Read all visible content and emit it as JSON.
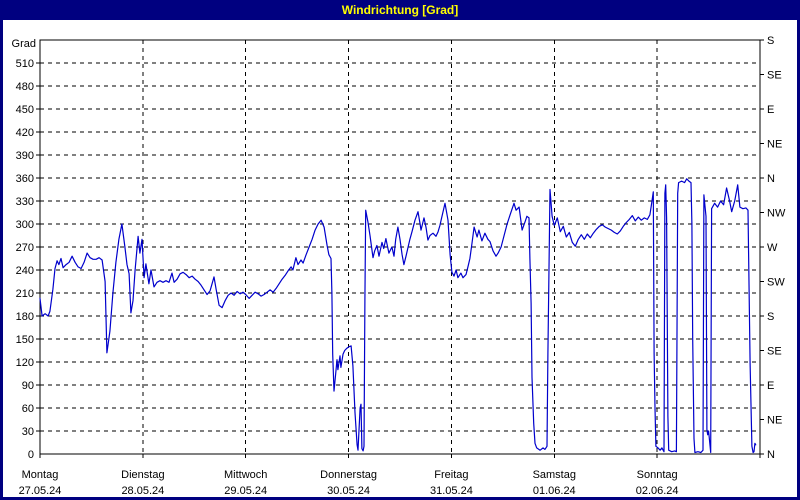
{
  "window": {
    "title": "Windrichtung [Grad]"
  },
  "colors": {
    "titlebar": "#000080",
    "title_text": "#FFFF00",
    "panel_bg": "#FFFFFF",
    "grid": "#000000",
    "axis": "#000000",
    "label_text": "#000000",
    "line": "#0000CC"
  },
  "chart_data": {
    "type": "line",
    "title": "Windrichtung [Grad]",
    "y_axis": {
      "unit_label": "Grad",
      "min": 0,
      "max": 540,
      "tick_step": 30,
      "tick_labels": [
        "0",
        "30",
        "60",
        "90",
        "120",
        "150",
        "180",
        "210",
        "240",
        "270",
        "300",
        "330",
        "360",
        "390",
        "420",
        "450",
        "480",
        "510"
      ]
    },
    "right_axis": {
      "tick_step_deg": 45,
      "labels_bottom_to_top": [
        "N",
        "NE",
        "E",
        "SE",
        "S",
        "SW",
        "W",
        "NW",
        "N",
        "NE",
        "E",
        "SE",
        "S"
      ]
    },
    "x_axis": {
      "range_hours": [
        0,
        168
      ],
      "day_tick_step_hours": 24,
      "categories": [
        {
          "day": "Montag",
          "date": "27.05.24"
        },
        {
          "day": "Dienstag",
          "date": "28.05.24"
        },
        {
          "day": "Mittwoch",
          "date": "29.05.24"
        },
        {
          "day": "Donnerstag",
          "date": "30.05.24"
        },
        {
          "day": "Freitag",
          "date": "31.05.24"
        },
        {
          "day": "Samstag",
          "date": "01.06.24"
        },
        {
          "day": "Sonntag",
          "date": "02.06.24"
        }
      ]
    },
    "grid": {
      "horizontal": "dashed",
      "vertical_days": "dashed"
    },
    "series": [
      {
        "name": "Windrichtung",
        "unit": "Grad",
        "color": "#0000CC",
        "points": [
          [
            0,
            203
          ],
          [
            0.5,
            180
          ],
          [
            1.2,
            183
          ],
          [
            1.9,
            180
          ],
          [
            2.3,
            186
          ],
          [
            3,
            215
          ],
          [
            3.5,
            242
          ],
          [
            4,
            252
          ],
          [
            4.4,
            247
          ],
          [
            4.9,
            255
          ],
          [
            5.4,
            243
          ],
          [
            6.1,
            247
          ],
          [
            6.8,
            250
          ],
          [
            7.5,
            258
          ],
          [
            8.2,
            250
          ],
          [
            8.9,
            244
          ],
          [
            9.6,
            242
          ],
          [
            10.3,
            250
          ],
          [
            11,
            262
          ],
          [
            11.7,
            256
          ],
          [
            12.4,
            254
          ],
          [
            13.1,
            254
          ],
          [
            13.8,
            256
          ],
          [
            14.5,
            253
          ],
          [
            15.2,
            225
          ],
          [
            15.6,
            132
          ],
          [
            16.3,
            160
          ],
          [
            17,
            210
          ],
          [
            17.7,
            250
          ],
          [
            18.4,
            280
          ],
          [
            19.1,
            300
          ],
          [
            19.8,
            270
          ],
          [
            20.3,
            247
          ],
          [
            20.8,
            235
          ],
          [
            21.2,
            184
          ],
          [
            21.7,
            200
          ],
          [
            22.2,
            240
          ],
          [
            22.9,
            284
          ],
          [
            23.3,
            262
          ],
          [
            23.8,
            280
          ],
          [
            24.3,
            230
          ],
          [
            24.7,
            248
          ],
          [
            25.4,
            222
          ],
          [
            25.9,
            240
          ],
          [
            26.6,
            218
          ],
          [
            27.3,
            224
          ],
          [
            28,
            226
          ],
          [
            28.7,
            224
          ],
          [
            29.4,
            226
          ],
          [
            30.1,
            224
          ],
          [
            30.8,
            236
          ],
          [
            31.3,
            224
          ],
          [
            32,
            228
          ],
          [
            32.7,
            235
          ],
          [
            33.4,
            237
          ],
          [
            34.1,
            234
          ],
          [
            34.8,
            230
          ],
          [
            35.5,
            232
          ],
          [
            36.2,
            228
          ],
          [
            36.9,
            225
          ],
          [
            37.6,
            220
          ],
          [
            38.3,
            214
          ],
          [
            39,
            208
          ],
          [
            39.7,
            213
          ],
          [
            40.6,
            231
          ],
          [
            41.1,
            215
          ],
          [
            41.8,
            194
          ],
          [
            42.5,
            191
          ],
          [
            43.2,
            200
          ],
          [
            43.9,
            207
          ],
          [
            44.6,
            210
          ],
          [
            45.3,
            207
          ],
          [
            46,
            212
          ],
          [
            46.7,
            209
          ],
          [
            47.4,
            211
          ],
          [
            48,
            208
          ],
          [
            48.8,
            203
          ],
          [
            49.5,
            207
          ],
          [
            50.2,
            211
          ],
          [
            50.9,
            209
          ],
          [
            51.6,
            206
          ],
          [
            52.3,
            208
          ],
          [
            53,
            211
          ],
          [
            53.7,
            214
          ],
          [
            54.4,
            211
          ],
          [
            55.1,
            216
          ],
          [
            55.8,
            222
          ],
          [
            56.5,
            228
          ],
          [
            57.2,
            233
          ],
          [
            57.9,
            239
          ],
          [
            58.6,
            244
          ],
          [
            59,
            240
          ],
          [
            59.7,
            256
          ],
          [
            60.2,
            247
          ],
          [
            60.9,
            253
          ],
          [
            61.4,
            249
          ],
          [
            62.1,
            260
          ],
          [
            62.8,
            270
          ],
          [
            63.5,
            280
          ],
          [
            64.2,
            292
          ],
          [
            64.9,
            300
          ],
          [
            65.6,
            305
          ],
          [
            66.3,
            296
          ],
          [
            67,
            272
          ],
          [
            67.4,
            260
          ],
          [
            67.9,
            255
          ],
          [
            68.1,
            210
          ],
          [
            68.3,
            130
          ],
          [
            68.6,
            82
          ],
          [
            69,
            105
          ],
          [
            69.3,
            123
          ],
          [
            69.5,
            110
          ],
          [
            70,
            128
          ],
          [
            70.2,
            113
          ],
          [
            70.7,
            130
          ],
          [
            71.1,
            135
          ],
          [
            71.6,
            138
          ],
          [
            72.1,
            140
          ],
          [
            72.6,
            141
          ],
          [
            73,
            115
          ],
          [
            73.5,
            54
          ],
          [
            74,
            12
          ],
          [
            74.2,
            5
          ],
          [
            74.7,
            60
          ],
          [
            74.9,
            65
          ],
          [
            75.1,
            7
          ],
          [
            75.4,
            4
          ],
          [
            75.6,
            10
          ],
          [
            75.8,
            200
          ],
          [
            76,
            318
          ],
          [
            76.5,
            303
          ],
          [
            77,
            285
          ],
          [
            77.7,
            256
          ],
          [
            78.1,
            265
          ],
          [
            78.6,
            272
          ],
          [
            79.1,
            258
          ],
          [
            79.8,
            276
          ],
          [
            80.2,
            268
          ],
          [
            80.7,
            281
          ],
          [
            81.4,
            262
          ],
          [
            82.1,
            270
          ],
          [
            82.6,
            258
          ],
          [
            83,
            280
          ],
          [
            83.5,
            296
          ],
          [
            84,
            280
          ],
          [
            84.5,
            260
          ],
          [
            84.9,
            247
          ],
          [
            85.4,
            258
          ],
          [
            85.9,
            270
          ],
          [
            86.3,
            280
          ],
          [
            86.8,
            290
          ],
          [
            87.5,
            305
          ],
          [
            88.2,
            316
          ],
          [
            88.7,
            300
          ],
          [
            88.9,
            292
          ],
          [
            89.6,
            308
          ],
          [
            90.1,
            295
          ],
          [
            90.5,
            279
          ],
          [
            91,
            285
          ],
          [
            91.7,
            288
          ],
          [
            92.4,
            284
          ],
          [
            92.9,
            290
          ],
          [
            93.3,
            298
          ],
          [
            93.8,
            310
          ],
          [
            94.5,
            327
          ],
          [
            95.2,
            305
          ],
          [
            95.7,
            260
          ],
          [
            96.1,
            237
          ],
          [
            96.6,
            232
          ],
          [
            97.1,
            240
          ],
          [
            97.5,
            230
          ],
          [
            98.2,
            236
          ],
          [
            98.7,
            230
          ],
          [
            99.4,
            234
          ],
          [
            99.9,
            245
          ],
          [
            100.3,
            255
          ],
          [
            100.8,
            275
          ],
          [
            101.3,
            296
          ],
          [
            102,
            283
          ],
          [
            102.4,
            292
          ],
          [
            103.1,
            278
          ],
          [
            103.8,
            288
          ],
          [
            104.5,
            280
          ],
          [
            105,
            277
          ],
          [
            105.7,
            265
          ],
          [
            106.4,
            258
          ],
          [
            106.9,
            262
          ],
          [
            107.6,
            270
          ],
          [
            108.3,
            285
          ],
          [
            109,
            300
          ],
          [
            109.7,
            312
          ],
          [
            110.6,
            327
          ],
          [
            111.1,
            318
          ],
          [
            111.8,
            322
          ],
          [
            112.5,
            292
          ],
          [
            113.2,
            303
          ],
          [
            113.6,
            310
          ],
          [
            114.1,
            308
          ],
          [
            114.3,
            255
          ],
          [
            114.6,
            197
          ],
          [
            114.8,
            100
          ],
          [
            115.2,
            40
          ],
          [
            115.5,
            14
          ],
          [
            115.9,
            8
          ],
          [
            116.7,
            5
          ],
          [
            117.4,
            8
          ],
          [
            117.8,
            6
          ],
          [
            118.3,
            10
          ],
          [
            118.5,
            130
          ],
          [
            119,
            345
          ],
          [
            119.5,
            310
          ],
          [
            120,
            298
          ],
          [
            120.7,
            308
          ],
          [
            121.4,
            290
          ],
          [
            122.1,
            297
          ],
          [
            122.8,
            283
          ],
          [
            123.5,
            289
          ],
          [
            124.2,
            276
          ],
          [
            124.9,
            271
          ],
          [
            125.6,
            280
          ],
          [
            126.3,
            286
          ],
          [
            127,
            280
          ],
          [
            127.7,
            287
          ],
          [
            128.4,
            282
          ],
          [
            129.1,
            288
          ],
          [
            129.8,
            293
          ],
          [
            130.5,
            297
          ],
          [
            131.2,
            299
          ],
          [
            131.9,
            296
          ],
          [
            132.6,
            294
          ],
          [
            133.3,
            292
          ],
          [
            134,
            289
          ],
          [
            134.7,
            287
          ],
          [
            135.4,
            291
          ],
          [
            136.1,
            297
          ],
          [
            136.8,
            302
          ],
          [
            137.5,
            306
          ],
          [
            138.2,
            311
          ],
          [
            138.9,
            304
          ],
          [
            139.6,
            309
          ],
          [
            140.3,
            305
          ],
          [
            141,
            308
          ],
          [
            141.7,
            306
          ],
          [
            142.3,
            312
          ],
          [
            142.8,
            330
          ],
          [
            143.1,
            342
          ],
          [
            143.3,
            132
          ],
          [
            143.5,
            60
          ],
          [
            143.7,
            10
          ],
          [
            144.2,
            8
          ],
          [
            144.7,
            5
          ],
          [
            145.1,
            8
          ],
          [
            145.6,
            3
          ],
          [
            145.8,
            340
          ],
          [
            146,
            351
          ],
          [
            146.2,
            308
          ],
          [
            146.5,
            49
          ],
          [
            146.7,
            5
          ],
          [
            147.4,
            3
          ],
          [
            148.1,
            4
          ],
          [
            148.5,
            3
          ],
          [
            148.8,
            340
          ],
          [
            149,
            354
          ],
          [
            149.7,
            356
          ],
          [
            150.4,
            354
          ],
          [
            150.9,
            359
          ],
          [
            151.4,
            356
          ],
          [
            151.9,
            354
          ],
          [
            152.1,
            300
          ],
          [
            152.3,
            150
          ],
          [
            152.6,
            20
          ],
          [
            152.8,
            2
          ],
          [
            153.5,
            3
          ],
          [
            154.2,
            2
          ],
          [
            154.7,
            5
          ],
          [
            154.9,
            338
          ],
          [
            155.4,
            310
          ],
          [
            155.6,
            32
          ],
          [
            155.8,
            25
          ],
          [
            156,
            30
          ],
          [
            156.5,
            2
          ],
          [
            156.7,
            320
          ],
          [
            157.4,
            327
          ],
          [
            158.1,
            322
          ],
          [
            158.8,
            330
          ],
          [
            159.5,
            325
          ],
          [
            160.2,
            347
          ],
          [
            160.9,
            330
          ],
          [
            161.4,
            316
          ],
          [
            162.1,
            330
          ],
          [
            162.8,
            351
          ],
          [
            163.3,
            322
          ],
          [
            164,
            320
          ],
          [
            164.7,
            321
          ],
          [
            165.2,
            318
          ],
          [
            165.7,
            118
          ],
          [
            166.1,
            10
          ],
          [
            166.4,
            2
          ],
          [
            166.6,
            3
          ],
          [
            166.8,
            14
          ],
          [
            167,
            12
          ]
        ]
      }
    ]
  }
}
